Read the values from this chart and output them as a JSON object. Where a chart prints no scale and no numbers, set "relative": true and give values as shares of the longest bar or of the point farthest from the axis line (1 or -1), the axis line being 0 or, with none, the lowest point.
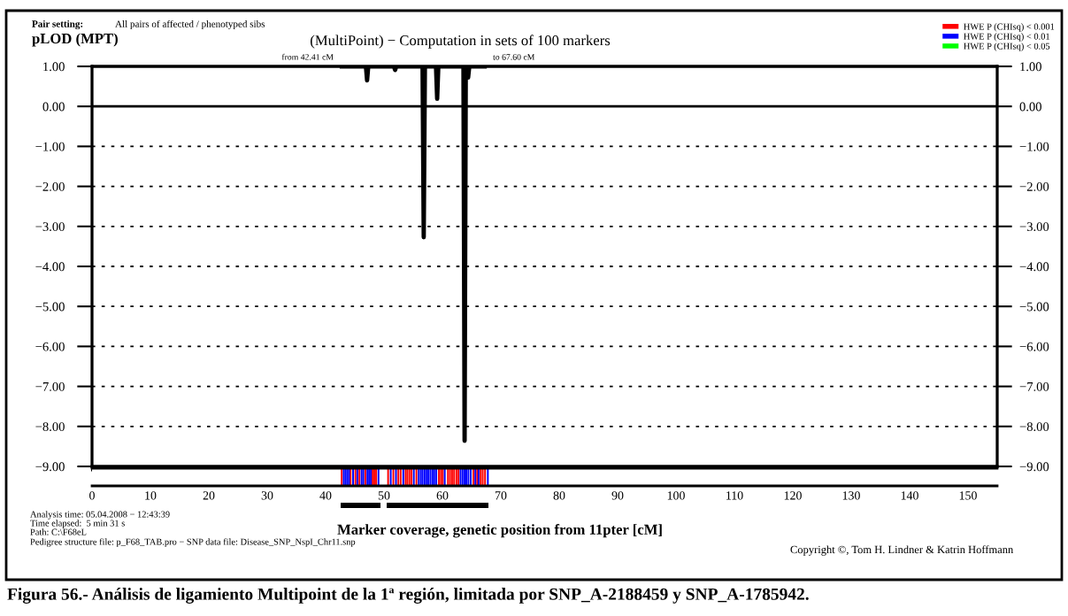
{
  "chart_data": [
    {
      "type": "line",
      "title": "(MultiPoint) − Computation in sets of 100 markers",
      "ylabel": "pLOD (MPT)",
      "xlabel": "Marker coverage, genetic position from 11pter [cM]",
      "series": [
        {
          "color": "#000000",
          "x": [
            42.41,
            46.9,
            47.1,
            47.3,
            51.7,
            51.9,
            52.1,
            56.6,
            56.8,
            57.0,
            58.9,
            59.1,
            59.3,
            63.6,
            63.8,
            64.0,
            64.2,
            64.4,
            64.6,
            67.6
          ],
          "values": [
            1,
            1,
            0.65,
            1,
            1,
            0.91,
            1,
            1,
            -3.27,
            1,
            1,
            0.19,
            1,
            1,
            -8.36,
            1,
            1,
            0.72,
            1,
            1
          ]
        }
      ],
      "xlim": [
        0,
        155
      ],
      "xticks": [
        0,
        10,
        20,
        30,
        40,
        50,
        60,
        70,
        80,
        90,
        100,
        110,
        120,
        130,
        140,
        150
      ],
      "ylim": [
        -9,
        1
      ],
      "yticks": [
        {
          "value": 1,
          "label": "1.00"
        },
        {
          "value": 0,
          "label": "0.00"
        },
        {
          "value": -1,
          "label": "−1.00"
        },
        {
          "value": -2,
          "label": "−2.00"
        },
        {
          "value": -3,
          "label": "−3.00"
        },
        {
          "value": -4,
          "label": "−4.00"
        },
        {
          "value": -5,
          "label": "−5.00"
        },
        {
          "value": -6,
          "label": "−6.00"
        },
        {
          "value": -7,
          "label": "−7.00"
        },
        {
          "value": -8,
          "label": "−8.00"
        },
        {
          "value": -9,
          "label": "−9.00"
        }
      ],
      "y2lim": [
        -9,
        1
      ],
      "y2ticks": [
        {
          "value": 1,
          "label": "1.00"
        },
        {
          "value": 0,
          "label": "0.00"
        },
        {
          "value": -1,
          "label": "−1.00"
        },
        {
          "value": -2,
          "label": "−2.00"
        },
        {
          "value": -3,
          "label": "−3.00"
        },
        {
          "value": -4,
          "label": "−4.00"
        },
        {
          "value": -5,
          "label": "−5.00"
        },
        {
          "value": -6,
          "label": "−6.00"
        },
        {
          "value": -7,
          "label": "−7.00"
        },
        {
          "value": -8,
          "label": "−8.00"
        },
        {
          "value": -9,
          "label": "−9.00"
        }
      ],
      "grid": "y",
      "ref_lines": [
        {
          "axis": "y",
          "value": 0,
          "color": "#000000",
          "line_style": "solid"
        }
      ],
      "annotations": [
        "Pair setting:",
        "All pairs of affected / phenotyped sibs",
        {
          "text": "from 42.41 cM",
          "x": 42.41,
          "y": 1
        },
        {
          "text": "to 67.60 cM",
          "x": 67.6,
          "y": 1
        },
        "Analysis time: 05.04.2008 − 12:43:39",
        "Time elapsed:  5 min 31 s",
        "Path: C:\\F68eL",
        "Pedigree structure file: p_F68_TAB.pro − SNP data file: Disease_SNP_NspI_Chr11.snp",
        "Copyright ©, Tom H. Lindner & Katrin Hoffmann",
        "Figura 56.- Análisis de ligamiento Multipoint de la 1ª región, limitada por SNP_A-2188459 y SNP_A-1785942."
      ]
    },
    {
      "type": "bar",
      "relative": true,
      "xlim": [
        0,
        155
      ],
      "tick_labels": false,
      "legend": "top right",
      "series": [
        {
          "name": "HWE P (CHIsq) < 0.001",
          "color": "#ff0000",
          "x": [
            42.75,
            44.27,
            45.1,
            45.78,
            46.8,
            48.05,
            48.35,
            48.65,
            50.7,
            51.6,
            52.45,
            52.85,
            53.7,
            54.0,
            54.35,
            54.7,
            55.55,
            59.4,
            59.75,
            60.05,
            60.95,
            61.3,
            61.65,
            62.0,
            62.4,
            62.75,
            65.3,
            65.95,
            66.55,
            66.9,
            67.3
          ],
          "values": [
            1,
            1,
            1,
            1,
            1,
            1,
            1,
            1,
            1,
            1,
            1,
            1,
            1,
            1,
            1,
            1,
            1,
            1,
            1,
            1,
            1,
            1,
            1,
            1,
            1,
            1,
            1,
            1,
            1,
            1,
            1
          ]
        },
        {
          "name": "HWE P (CHIsq) < 0.01",
          "color": "#0000ff",
          "x": [
            43.1,
            43.4,
            43.7,
            44.0,
            44.7,
            45.43,
            46.15,
            46.45,
            47.15,
            47.45,
            47.75,
            49.05,
            51.15,
            52.05,
            53.3,
            55.1,
            55.95,
            56.3,
            56.6,
            56.95,
            57.3,
            57.6,
            57.95,
            58.3,
            58.6,
            58.95,
            60.4,
            63.1,
            63.45,
            63.8,
            64.1,
            64.45,
            64.85,
            65.63,
            66.2,
            67.78
          ],
          "values": [
            1,
            1,
            1,
            1,
            1,
            1,
            1,
            1,
            1,
            1,
            1,
            1,
            1,
            1,
            1,
            1,
            1,
            1,
            1,
            1,
            1,
            1,
            1,
            1,
            1,
            1,
            1,
            1,
            1,
            1,
            1,
            1,
            1,
            1,
            1,
            1
          ]
        },
        {
          "name": "HWE P (CHIsq) < 0.05",
          "color": "#00ff00"
        }
      ]
    }
  ]
}
